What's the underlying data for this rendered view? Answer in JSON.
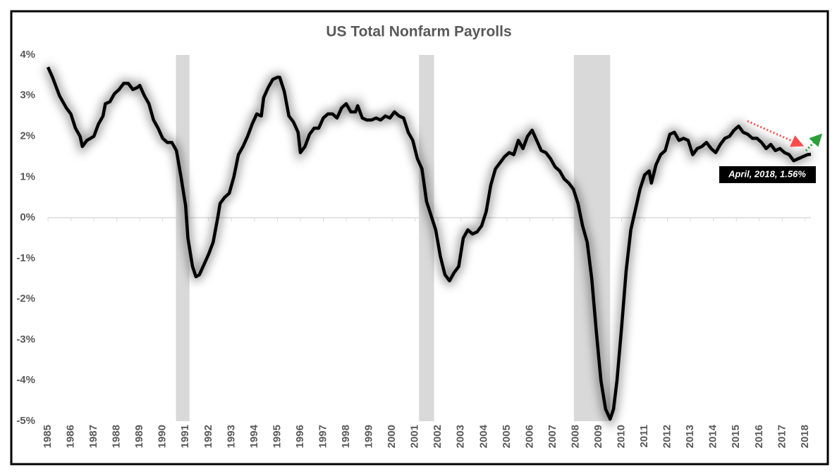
{
  "chart_data": {
    "type": "line",
    "title": "US Total Nonfarm Payrolls",
    "color": "#000000",
    "x": [
      1985.0,
      1985.2,
      1985.5,
      1985.8,
      1986.0,
      1986.2,
      1986.4,
      1986.5,
      1986.7,
      1987.0,
      1987.2,
      1987.4,
      1987.5,
      1987.7,
      1987.9,
      1988.1,
      1988.3,
      1988.5,
      1988.7,
      1988.9,
      1989.0,
      1989.2,
      1989.4,
      1989.6,
      1989.8,
      1990.0,
      1990.2,
      1990.4,
      1990.6,
      1990.8,
      1991.0,
      1991.1,
      1991.3,
      1991.45,
      1991.6,
      1991.8,
      1992.0,
      1992.2,
      1992.4,
      1992.5,
      1992.7,
      1992.9,
      1993.1,
      1993.3,
      1993.5,
      1993.7,
      1993.9,
      1994.1,
      1994.3,
      1994.4,
      1994.6,
      1994.8,
      1995.0,
      1995.1,
      1995.3,
      1995.5,
      1995.7,
      1995.9,
      1996.0,
      1996.2,
      1996.4,
      1996.6,
      1996.8,
      1997.0,
      1997.2,
      1997.4,
      1997.6,
      1997.8,
      1998.0,
      1998.2,
      1998.4,
      1998.5,
      1998.7,
      1998.9,
      1999.1,
      1999.3,
      1999.5,
      1999.7,
      1999.9,
      2000.1,
      2000.3,
      2000.5,
      2000.7,
      2000.9,
      2001.1,
      2001.3,
      2001.5,
      2001.7,
      2001.9,
      2002.1,
      2002.3,
      2002.5,
      2002.7,
      2002.9,
      2003.1,
      2003.3,
      2003.5,
      2003.7,
      2003.9,
      2004.1,
      2004.3,
      2004.5,
      2004.7,
      2004.9,
      2005.1,
      2005.3,
      2005.5,
      2005.7,
      2005.9,
      2006.1,
      2006.3,
      2006.5,
      2006.7,
      2006.9,
      2007.1,
      2007.3,
      2007.5,
      2007.7,
      2007.9,
      2008.1,
      2008.3,
      2008.5,
      2008.7,
      2008.9,
      2009.1,
      2009.3,
      2009.5,
      2009.65,
      2009.8,
      2010.0,
      2010.2,
      2010.4,
      2010.6,
      2010.8,
      2011.0,
      2011.2,
      2011.3,
      2011.5,
      2011.7,
      2011.9,
      2012.1,
      2012.3,
      2012.5,
      2012.7,
      2012.9,
      2013.1,
      2013.3,
      2013.5,
      2013.7,
      2013.9,
      2014.1,
      2014.3,
      2014.5,
      2014.7,
      2014.9,
      2015.1,
      2015.3,
      2015.5,
      2015.7,
      2015.9,
      2016.1,
      2016.3,
      2016.5,
      2016.7,
      2016.9,
      2017.1,
      2017.3,
      2017.5,
      2017.7,
      2017.9,
      2018.1,
      2018.25
    ],
    "values": [
      3.7,
      3.45,
      3.0,
      2.7,
      2.55,
      2.2,
      2.0,
      1.75,
      1.9,
      2.0,
      2.3,
      2.5,
      2.8,
      2.85,
      3.05,
      3.15,
      3.3,
      3.3,
      3.15,
      3.2,
      3.25,
      3.0,
      2.8,
      2.4,
      2.2,
      1.95,
      1.85,
      1.85,
      1.65,
      1.0,
      0.3,
      -0.5,
      -1.2,
      -1.45,
      -1.4,
      -1.15,
      -0.9,
      -0.6,
      0.0,
      0.35,
      0.5,
      0.6,
      1.0,
      1.55,
      1.75,
      2.0,
      2.3,
      2.55,
      2.5,
      2.95,
      3.2,
      3.4,
      3.45,
      3.45,
      3.1,
      2.5,
      2.35,
      2.1,
      1.6,
      1.75,
      2.05,
      2.2,
      2.2,
      2.45,
      2.55,
      2.55,
      2.45,
      2.7,
      2.8,
      2.6,
      2.6,
      2.75,
      2.45,
      2.4,
      2.4,
      2.45,
      2.4,
      2.5,
      2.45,
      2.6,
      2.5,
      2.45,
      2.1,
      1.9,
      1.45,
      1.2,
      0.4,
      0.05,
      -0.3,
      -0.95,
      -1.4,
      -1.55,
      -1.35,
      -1.2,
      -0.5,
      -0.3,
      -0.4,
      -0.35,
      -0.2,
      0.15,
      0.8,
      1.2,
      1.35,
      1.5,
      1.6,
      1.55,
      1.9,
      1.7,
      2.0,
      2.15,
      1.9,
      1.65,
      1.6,
      1.45,
      1.25,
      1.15,
      0.95,
      0.85,
      0.7,
      0.35,
      -0.2,
      -0.6,
      -1.5,
      -2.8,
      -4.0,
      -4.7,
      -4.95,
      -4.7,
      -4.0,
      -2.7,
      -1.3,
      -0.3,
      0.2,
      0.7,
      1.05,
      1.15,
      0.85,
      1.3,
      1.55,
      1.65,
      2.05,
      2.1,
      1.9,
      1.95,
      1.9,
      1.55,
      1.7,
      1.75,
      1.85,
      1.7,
      1.6,
      1.8,
      1.95,
      2.0,
      2.15,
      2.25,
      2.1,
      2.05,
      1.95,
      1.95,
      1.85,
      1.7,
      1.8,
      1.65,
      1.7,
      1.6,
      1.55,
      1.4,
      1.45,
      1.5,
      1.55,
      1.56
    ],
    "recessions": [
      [
        1990.58,
        1991.17
      ],
      [
        2001.17,
        2001.83
      ],
      [
        2007.92,
        2009.5
      ]
    ],
    "annotation": "April, 2018, 1.56%",
    "xlim": [
      1985,
      2018.25
    ],
    "xticks": [
      1985,
      1986,
      1987,
      1988,
      1989,
      1990,
      1991,
      1992,
      1993,
      1994,
      1995,
      1996,
      1997,
      1998,
      1999,
      2000,
      2001,
      2002,
      2003,
      2004,
      2005,
      2006,
      2007,
      2008,
      2009,
      2010,
      2011,
      2012,
      2013,
      2014,
      2015,
      2016,
      2017,
      2018
    ],
    "ylim": [
      -5,
      4
    ],
    "yticks": [
      {
        "value": -5,
        "label": "-5%"
      },
      {
        "value": -4,
        "label": "-4%"
      },
      {
        "value": -3,
        "label": "-3%"
      },
      {
        "value": -2,
        "label": "-2%"
      },
      {
        "value": -1,
        "label": "-1%"
      },
      {
        "value": 0,
        "label": "0%"
      },
      {
        "value": 1,
        "label": "1%"
      },
      {
        "value": 2,
        "label": "2%"
      },
      {
        "value": 3,
        "label": "3%"
      },
      {
        "value": 4,
        "label": "4%"
      }
    ]
  }
}
